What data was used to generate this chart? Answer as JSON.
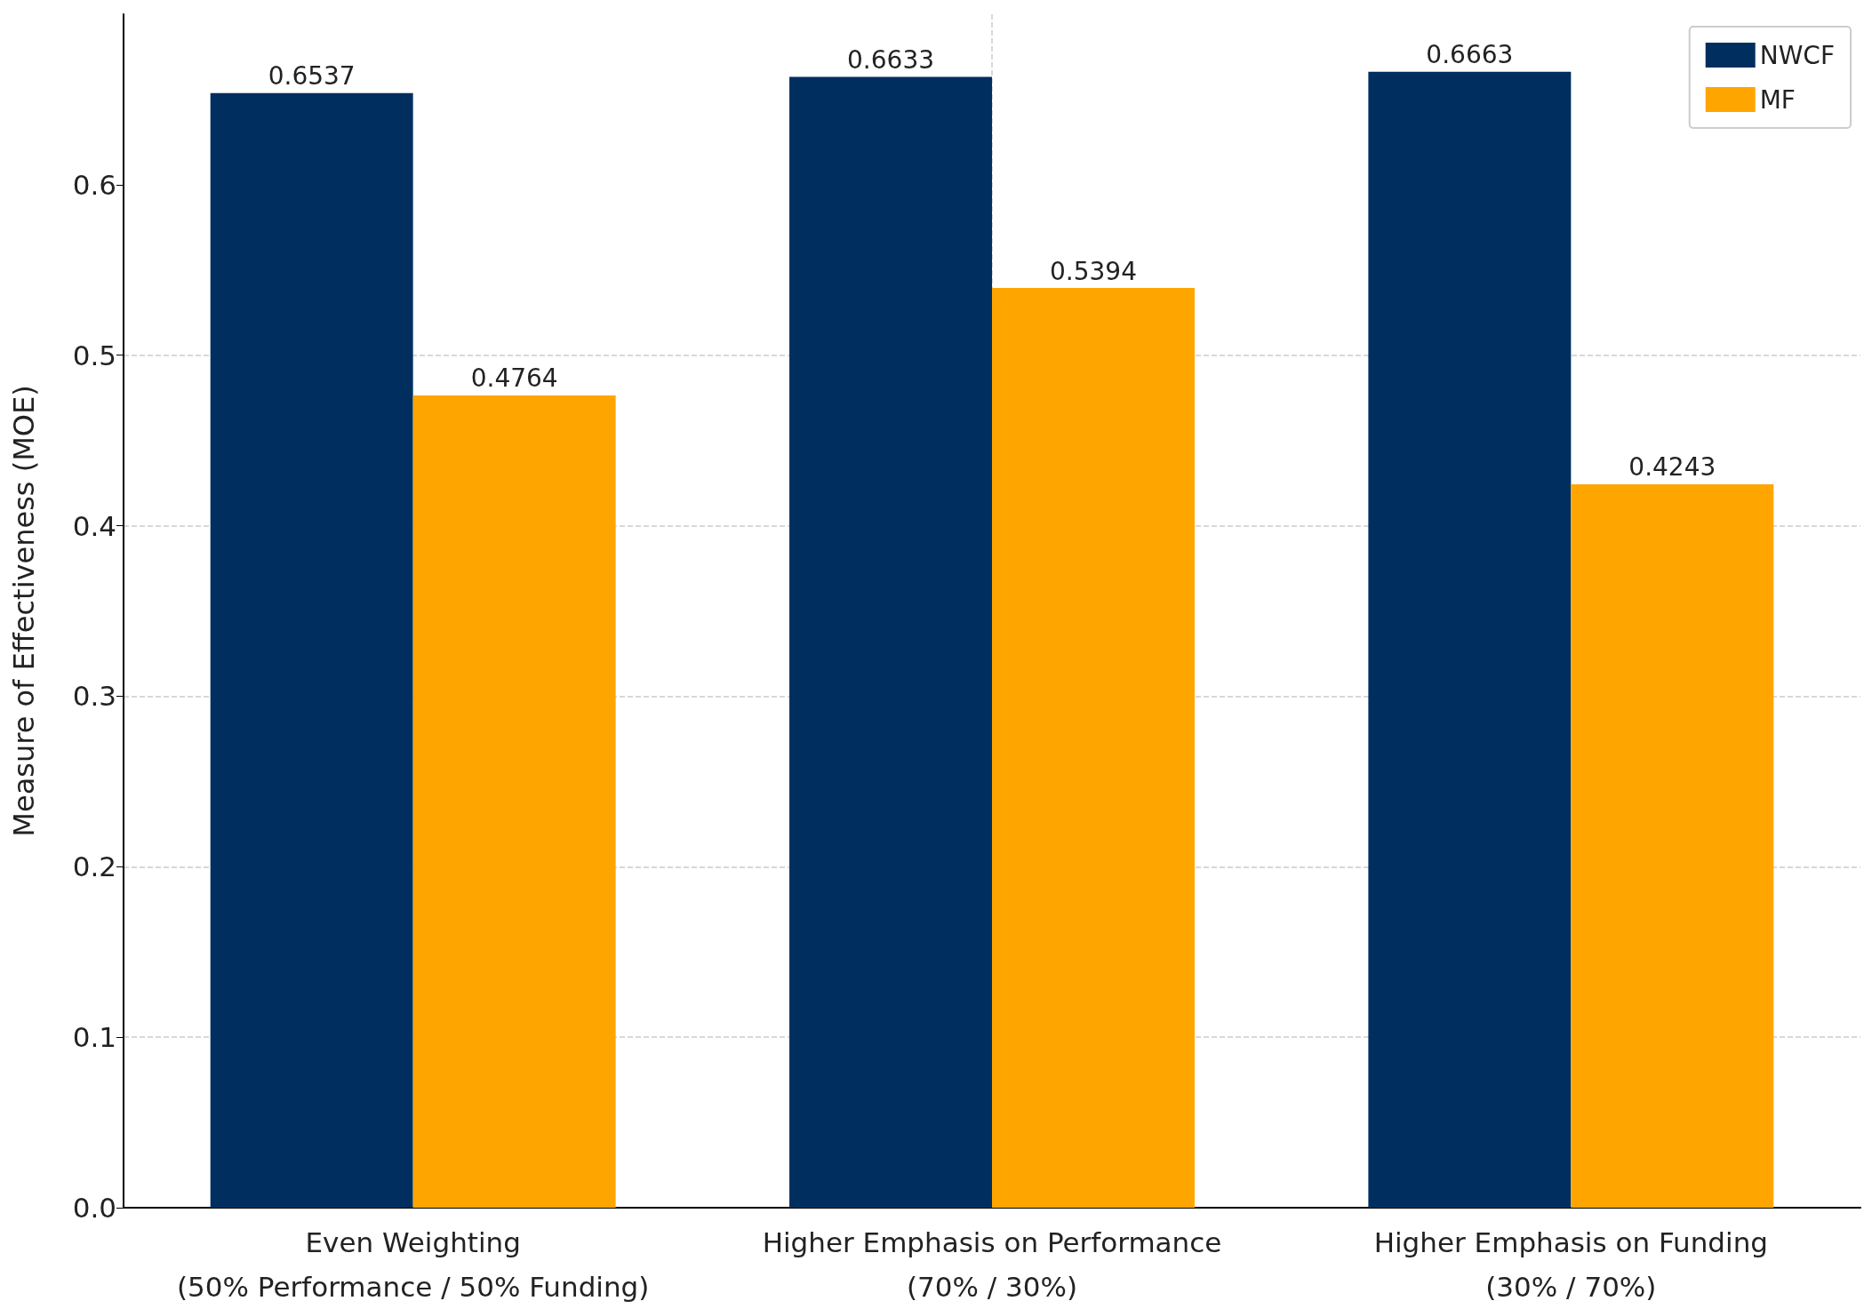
{
  "chart_data": {
    "type": "bar",
    "ylabel": "Measure of Effectiveness (MOE)",
    "categories": [
      "Even Weighting\n(50% Performance / 50% Funding)",
      "Higher Emphasis on Performance\n(70% / 30%)",
      "Higher Emphasis on Funding\n(30% / 70%)"
    ],
    "series": [
      {
        "name": "NWCF",
        "color": "#002f5f",
        "values": [
          0.6537,
          0.6633,
          0.6663
        ]
      },
      {
        "name": "MF",
        "color": "#ffa500",
        "values": [
          0.4764,
          0.5394,
          0.4243
        ]
      }
    ],
    "ylim": [
      0,
      0.7
    ],
    "yticks": [
      {
        "value": 0,
        "label": "0.0"
      },
      0.1,
      0.2,
      0.3,
      0.4,
      0.5,
      0.6
    ],
    "grid": true,
    "legend": "top right",
    "data_labels": true
  }
}
